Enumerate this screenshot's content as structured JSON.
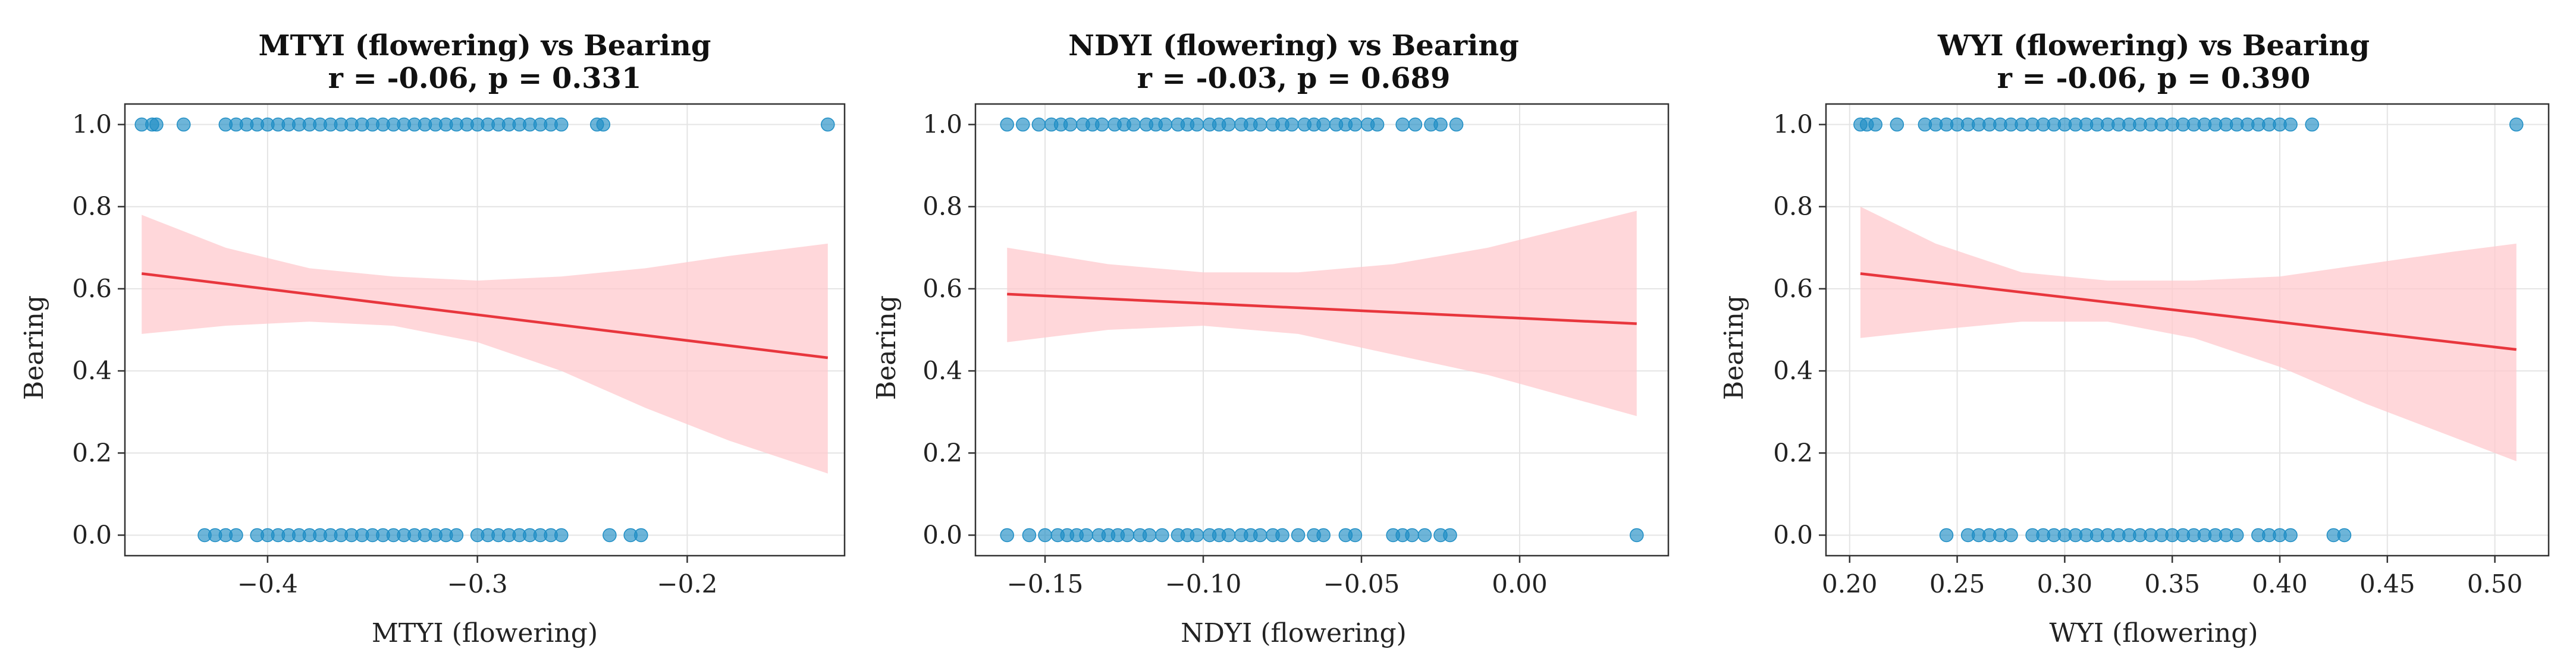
{
  "colors": {
    "points": "#1f8ec5",
    "fit_line": "#e8363d",
    "ci_band": "#ffc9ce",
    "grid": "#e4e4e4",
    "axis": "#333333"
  },
  "chart_data": [
    {
      "type": "scatter",
      "title": "MTYI (flowering) vs Bearing",
      "subtitle": "r = -0.06, p = 0.331",
      "xlabel": "MTYI (flowering)",
      "ylabel": "Bearing",
      "xlim": [
        -0.468,
        -0.125
      ],
      "ylim": [
        -0.05,
        1.05
      ],
      "xticks": [
        -0.4,
        -0.3,
        -0.2
      ],
      "xtick_labels": [
        "−0.4",
        "−0.3",
        "−0.2"
      ],
      "yticks": [
        0.0,
        0.2,
        0.4,
        0.6,
        0.8,
        1.0
      ],
      "ytick_labels": [
        "0.0",
        "0.2",
        "0.4",
        "0.6",
        "0.8",
        "1.0"
      ],
      "points_y1": [
        -0.46,
        -0.455,
        -0.453,
        -0.44,
        -0.42,
        -0.415,
        -0.41,
        -0.405,
        -0.4,
        -0.395,
        -0.39,
        -0.385,
        -0.38,
        -0.375,
        -0.37,
        -0.365,
        -0.36,
        -0.355,
        -0.35,
        -0.345,
        -0.34,
        -0.335,
        -0.33,
        -0.325,
        -0.32,
        -0.315,
        -0.31,
        -0.305,
        -0.3,
        -0.295,
        -0.29,
        -0.285,
        -0.28,
        -0.275,
        -0.27,
        -0.265,
        -0.26,
        -0.243,
        -0.24,
        -0.133
      ],
      "points_y0": [
        -0.43,
        -0.425,
        -0.42,
        -0.415,
        -0.405,
        -0.4,
        -0.395,
        -0.39,
        -0.385,
        -0.38,
        -0.375,
        -0.37,
        -0.365,
        -0.36,
        -0.355,
        -0.35,
        -0.345,
        -0.34,
        -0.335,
        -0.33,
        -0.325,
        -0.32,
        -0.315,
        -0.31,
        -0.3,
        -0.295,
        -0.29,
        -0.285,
        -0.28,
        -0.275,
        -0.27,
        -0.265,
        -0.26,
        -0.237,
        -0.227,
        -0.222
      ],
      "fit": {
        "x": [
          -0.46,
          -0.133
        ],
        "y": [
          0.637,
          0.432
        ]
      },
      "ci_x": [
        -0.46,
        -0.42,
        -0.38,
        -0.34,
        -0.3,
        -0.26,
        -0.22,
        -0.18,
        -0.133
      ],
      "ci_upper": [
        0.78,
        0.7,
        0.65,
        0.63,
        0.62,
        0.63,
        0.65,
        0.68,
        0.71
      ],
      "ci_lower": [
        0.49,
        0.51,
        0.52,
        0.51,
        0.47,
        0.4,
        0.31,
        0.23,
        0.15
      ]
    },
    {
      "type": "scatter",
      "title": "NDYI (flowering) vs Bearing",
      "subtitle": "r = -0.03, p = 0.689",
      "xlabel": "NDYI (flowering)",
      "ylabel": "Bearing",
      "xlim": [
        -0.172,
        0.047
      ],
      "ylim": [
        -0.05,
        1.05
      ],
      "xticks": [
        -0.15,
        -0.1,
        -0.05,
        0.0
      ],
      "xtick_labels": [
        "−0.15",
        "−0.10",
        "−0.05",
        "0.00"
      ],
      "yticks": [
        0.0,
        0.2,
        0.4,
        0.6,
        0.8,
        1.0
      ],
      "ytick_labels": [
        "0.0",
        "0.2",
        "0.4",
        "0.6",
        "0.8",
        "1.0"
      ],
      "points_y1": [
        -0.162,
        -0.157,
        -0.152,
        -0.148,
        -0.145,
        -0.142,
        -0.138,
        -0.135,
        -0.132,
        -0.128,
        -0.125,
        -0.122,
        -0.118,
        -0.115,
        -0.112,
        -0.108,
        -0.105,
        -0.102,
        -0.098,
        -0.095,
        -0.092,
        -0.088,
        -0.085,
        -0.082,
        -0.078,
        -0.075,
        -0.072,
        -0.068,
        -0.065,
        -0.062,
        -0.058,
        -0.055,
        -0.052,
        -0.048,
        -0.045,
        -0.037,
        -0.033,
        -0.028,
        -0.025,
        -0.02
      ],
      "points_y0": [
        -0.162,
        -0.155,
        -0.15,
        -0.146,
        -0.143,
        -0.14,
        -0.137,
        -0.133,
        -0.13,
        -0.127,
        -0.124,
        -0.12,
        -0.117,
        -0.113,
        -0.108,
        -0.105,
        -0.102,
        -0.098,
        -0.095,
        -0.092,
        -0.088,
        -0.085,
        -0.082,
        -0.078,
        -0.075,
        -0.07,
        -0.065,
        -0.062,
        -0.055,
        -0.052,
        -0.04,
        -0.037,
        -0.034,
        -0.03,
        -0.025,
        -0.022,
        0.037
      ],
      "fit": {
        "x": [
          -0.162,
          0.037
        ],
        "y": [
          0.587,
          0.515
        ]
      },
      "ci_x": [
        -0.162,
        -0.13,
        -0.1,
        -0.07,
        -0.04,
        -0.01,
        0.037
      ],
      "ci_upper": [
        0.7,
        0.66,
        0.64,
        0.64,
        0.66,
        0.7,
        0.79
      ],
      "ci_lower": [
        0.47,
        0.5,
        0.51,
        0.49,
        0.44,
        0.39,
        0.29
      ]
    },
    {
      "type": "scatter",
      "title": "WYI (flowering) vs Bearing",
      "subtitle": "r = -0.06, p = 0.390",
      "xlabel": "WYI (flowering)",
      "ylabel": "Bearing",
      "xlim": [
        0.189,
        0.525
      ],
      "ylim": [
        -0.05,
        1.05
      ],
      "xticks": [
        0.2,
        0.25,
        0.3,
        0.35,
        0.4,
        0.45,
        0.5
      ],
      "xtick_labels": [
        "0.20",
        "0.25",
        "0.30",
        "0.35",
        "0.40",
        "0.45",
        "0.50"
      ],
      "yticks": [
        0.0,
        0.2,
        0.4,
        0.6,
        0.8,
        1.0
      ],
      "ytick_labels": [
        "0.0",
        "0.2",
        "0.4",
        "0.6",
        "0.8",
        "1.0"
      ],
      "points_y1": [
        0.205,
        0.208,
        0.212,
        0.222,
        0.235,
        0.24,
        0.245,
        0.25,
        0.255,
        0.26,
        0.265,
        0.27,
        0.275,
        0.28,
        0.285,
        0.29,
        0.295,
        0.3,
        0.305,
        0.31,
        0.315,
        0.32,
        0.325,
        0.33,
        0.335,
        0.34,
        0.345,
        0.35,
        0.355,
        0.36,
        0.365,
        0.37,
        0.375,
        0.38,
        0.385,
        0.39,
        0.395,
        0.4,
        0.405,
        0.415,
        0.51
      ],
      "points_y0": [
        0.245,
        0.255,
        0.26,
        0.265,
        0.27,
        0.275,
        0.285,
        0.29,
        0.295,
        0.3,
        0.305,
        0.31,
        0.315,
        0.32,
        0.325,
        0.33,
        0.335,
        0.34,
        0.345,
        0.35,
        0.355,
        0.36,
        0.365,
        0.37,
        0.375,
        0.38,
        0.39,
        0.395,
        0.4,
        0.405,
        0.425,
        0.43
      ],
      "fit": {
        "x": [
          0.205,
          0.51
        ],
        "y": [
          0.637,
          0.452
        ]
      },
      "ci_x": [
        0.205,
        0.24,
        0.28,
        0.32,
        0.36,
        0.4,
        0.44,
        0.48,
        0.51
      ],
      "ci_upper": [
        0.8,
        0.71,
        0.64,
        0.62,
        0.62,
        0.63,
        0.66,
        0.69,
        0.71
      ],
      "ci_lower": [
        0.48,
        0.5,
        0.52,
        0.52,
        0.48,
        0.41,
        0.32,
        0.24,
        0.18
      ]
    }
  ]
}
